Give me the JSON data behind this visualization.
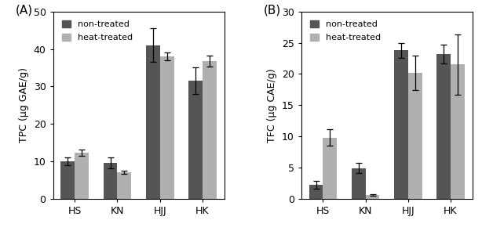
{
  "panel_A": {
    "label": "(A)",
    "categories": [
      "HS",
      "KN",
      "HJJ",
      "HK"
    ],
    "non_treated": [
      10.0,
      9.5,
      41.0,
      31.5
    ],
    "heat_treated": [
      12.3,
      7.0,
      38.0,
      36.7
    ],
    "non_treated_err": [
      1.1,
      1.5,
      4.5,
      3.5
    ],
    "heat_treated_err": [
      0.8,
      0.4,
      1.0,
      1.5
    ],
    "ylabel": "TPC (µg GAE/g)",
    "ylim": [
      0,
      50
    ],
    "yticks": [
      0,
      10,
      20,
      30,
      40,
      50
    ]
  },
  "panel_B": {
    "label": "(B)",
    "categories": [
      "HS",
      "KN",
      "HJJ",
      "HK"
    ],
    "non_treated": [
      2.2,
      4.9,
      23.8,
      23.2
    ],
    "heat_treated": [
      9.8,
      0.6,
      20.2,
      21.5
    ],
    "non_treated_err": [
      0.6,
      0.8,
      1.2,
      1.5
    ],
    "heat_treated_err": [
      1.3,
      0.15,
      2.8,
      4.8
    ],
    "ylabel": "TFC (µg CAE/g)",
    "ylim": [
      0,
      30
    ],
    "yticks": [
      0,
      5,
      10,
      15,
      20,
      25,
      30
    ]
  },
  "color_non_treated": "#555555",
  "color_heat_treated": "#b0b0b0",
  "bar_width": 0.33,
  "legend_labels": [
    "non-treated",
    "heat-treated"
  ],
  "text_color": "#000000",
  "spine_color": "#000000"
}
